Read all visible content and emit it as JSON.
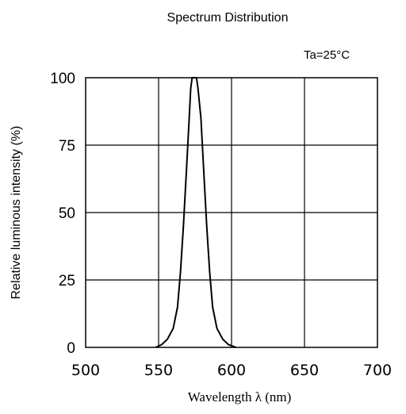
{
  "chart_data": {
    "type": "line",
    "title": "Spectrum Distribution",
    "annotation": "Ta=25°C",
    "xlabel": "Wavelength λ (nm)",
    "ylabel": "Relative luminous intensity (%)",
    "xlim": [
      500,
      700
    ],
    "ylim": [
      0,
      100
    ],
    "x_ticks": [
      "500",
      "550",
      "600",
      "650",
      "700"
    ],
    "y_ticks": [
      "0",
      "25",
      "50",
      "75",
      "100"
    ],
    "grid": true,
    "line_color": "#000000",
    "series": [
      {
        "x": [
          548,
          552,
          556,
          560,
          563,
          565,
          567,
          569,
          571,
          572,
          573,
          575,
          576,
          577,
          579,
          581,
          583,
          585,
          587,
          590,
          594,
          598,
          603
        ],
        "y": [
          0,
          1,
          3,
          7,
          15,
          28,
          45,
          65,
          85,
          96,
          100,
          100,
          100,
          96,
          85,
          65,
          45,
          28,
          15,
          7,
          3,
          1,
          0
        ]
      }
    ]
  }
}
